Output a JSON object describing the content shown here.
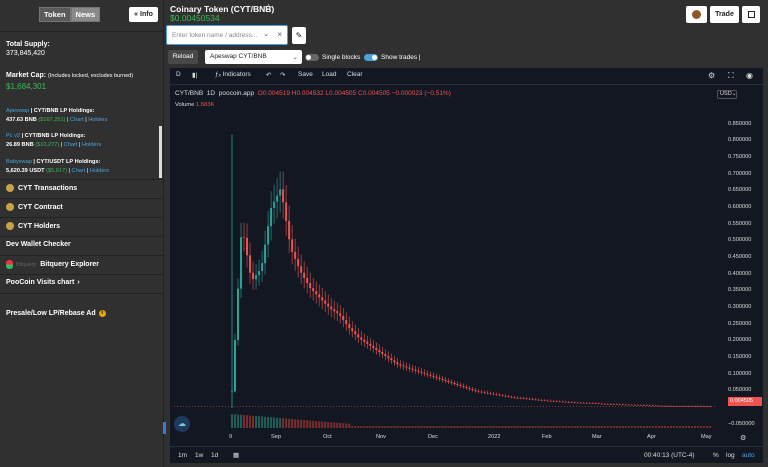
{
  "sidebar": {
    "tabs": [
      "Token",
      "News"
    ],
    "info_label": "Info",
    "info_icon": "double-chevron-left-icon",
    "total_supply_label": "Total Supply:",
    "total_supply_value": "373,845,420",
    "market_cap_label": "Market Cap:",
    "market_cap_note": "(Includes locked, excludes burned)",
    "market_cap_value": "$1,684,301",
    "holdings": [
      {
        "dex": "Apeswap",
        "pair": "| CYT/BNB LP Holdings:",
        "amount": "437.63 BNB",
        "usd": "($167,251)",
        "chart": "Chart",
        "holders": "Holders"
      },
      {
        "dex": "Pc v2",
        "pair": "| CYT/BNB LP Holdings:",
        "amount": "26.89 BNB",
        "usd": "($10,277)",
        "chart": "Chart",
        "holders": "Holders"
      },
      {
        "dex": "Babyswap",
        "pair": "| CYT/USDT LP Holdings:",
        "amount": "5,620.39 USDT",
        "usd": "($5,617)",
        "chart": "Chart",
        "holders": "Holders"
      }
    ],
    "menu": [
      {
        "label": "CYT Transactions",
        "icon": "coin-icon"
      },
      {
        "label": "CYT Contract",
        "icon": "coin-icon"
      },
      {
        "label": "CYT Holders",
        "icon": "coin-icon"
      },
      {
        "label": "Dev Wallet Checker",
        "icon": ""
      },
      {
        "label": "Bitquery Explorer",
        "prefix": "Bitquery",
        "icon": "bitquery-logo-icon"
      },
      {
        "label": "PooCoin Visits chart",
        "icon": "chevron-right-icon"
      }
    ],
    "presale_label": "Presale/Low LP/Rebase Ad",
    "presale_icon": "info-circle-icon"
  },
  "header": {
    "title": "Coinary Token (CYT/BNB)",
    "price": "$0.00450534",
    "star_icon": "star-outline-icon",
    "search_placeholder": "Enter token name / address...",
    "reload_label": "Reload",
    "pair_select": "Apeswap CYT/BNB",
    "single_blocks_label": "Single blocks",
    "show_trades_label": "Show trades |",
    "trade_label": "Trade"
  },
  "chart_toolbar": {
    "interval": "D",
    "indicators": "Indicators",
    "save": "Save",
    "load": "Load",
    "clear": "Clear"
  },
  "chart_data": {
    "type": "candlestick",
    "symbol": "CYT/BNB",
    "interval": "1D",
    "source": "poocoin.app",
    "ohlc_readout": {
      "O": "0.004519",
      "H": "0.004532",
      "L": "0.004505",
      "C": "0.004505",
      "change": "−0.000023 (−0.51%)"
    },
    "volume_label": "Volume",
    "volume_value": "1.583K",
    "currency": "USD",
    "last_price_label": "0.004505",
    "y_ticks": [
      "0.850000",
      "0.800000",
      "0.750000",
      "0.700000",
      "0.650000",
      "0.600000",
      "0.550000",
      "0.500000",
      "0.450000",
      "0.400000",
      "0.350000",
      "0.300000",
      "0.250000",
      "0.200000",
      "0.150000",
      "0.100000",
      "0.050000",
      "−0.050000"
    ],
    "x_ticks": [
      "9",
      "Sep",
      "Oct",
      "Nov",
      "Dec",
      "2022",
      "Feb",
      "Mar",
      "Apr",
      "May"
    ],
    "ylim": [
      -0.06,
      0.9
    ],
    "close_series": [
      0.05,
      0.55,
      0.38,
      0.42,
      0.6,
      0.66,
      0.48,
      0.41,
      0.36,
      0.33,
      0.3,
      0.28,
      0.24,
      0.21,
      0.19,
      0.17,
      0.15,
      0.13,
      0.12,
      0.11,
      0.1,
      0.09,
      0.08,
      0.07,
      0.06,
      0.05,
      0.045,
      0.04,
      0.035,
      0.03,
      0.028,
      0.025,
      0.022,
      0.02,
      0.018,
      0.016,
      0.015,
      0.014,
      0.012,
      0.011,
      0.01,
      0.009,
      0.008,
      0.007,
      0.006,
      0.0055,
      0.005,
      0.0048,
      0.0046,
      0.0045
    ]
  },
  "chart_bottom": {
    "ranges": [
      "1m",
      "1w",
      "1d"
    ],
    "calendar_icon": "calendar-icon",
    "time": "00:40:13 (UTC-4)",
    "pct": "%",
    "log": "log",
    "auto": "auto"
  }
}
